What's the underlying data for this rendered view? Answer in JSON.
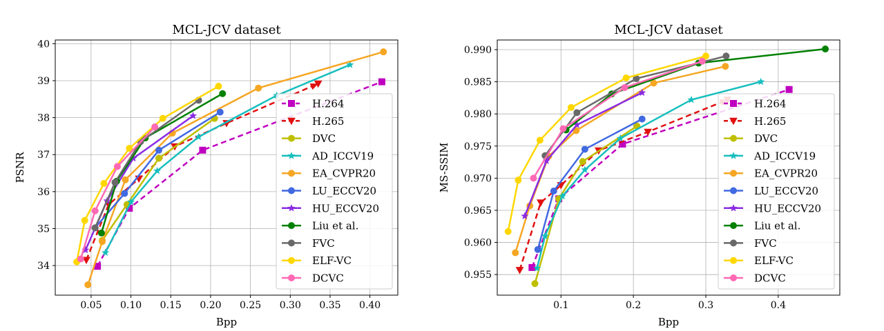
{
  "chart_data": [
    {
      "type": "line",
      "title": "MCL-JCV dataset",
      "xlabel": "Bpp",
      "ylabel": "PSNR",
      "xlim": [
        0.005,
        0.435
      ],
      "ylim": [
        33.2,
        40.1
      ],
      "xticks": [
        0.05,
        0.1,
        0.15,
        0.2,
        0.25,
        0.3,
        0.35,
        0.4
      ],
      "xtick_labels": [
        "0.05",
        "0.10",
        "0.15",
        "0.20",
        "0.25",
        "0.30",
        "0.35",
        "0.40"
      ],
      "yticks": [
        34,
        35,
        36,
        37,
        38,
        39,
        40
      ],
      "ytick_labels": [
        "34",
        "35",
        "36",
        "37",
        "38",
        "39",
        "40"
      ],
      "grid": true,
      "legend_position": "right",
      "series": [
        {
          "name": "H.264",
          "color": "#c000c0",
          "marker": "square",
          "dash": "dashed",
          "arrow": false,
          "points": [
            [
              0.058,
              33.98
            ],
            [
              0.098,
              35.55
            ],
            [
              0.19,
              37.12
            ],
            [
              0.415,
              38.97
            ]
          ]
        },
        {
          "name": "H.265",
          "color": "#e01010",
          "marker": "triangle-down",
          "dash": "dashed",
          "arrow": true,
          "points": [
            [
              0.044,
              34.15
            ],
            [
              0.072,
              35.65
            ],
            [
              0.11,
              36.35
            ],
            [
              0.155,
              37.22
            ],
            [
              0.22,
              37.85
            ],
            [
              0.335,
              38.92
            ]
          ]
        },
        {
          "name": "DVC",
          "color": "#bfbf00",
          "marker": "circle",
          "dash": "solid",
          "arrow": false,
          "points": [
            [
              0.064,
              34.68
            ],
            [
              0.095,
              35.65
            ],
            [
              0.135,
              36.9
            ],
            [
              0.205,
              37.98
            ]
          ]
        },
        {
          "name": "AD_ICCV19",
          "color": "#17bebe",
          "marker": "star",
          "dash": "solid",
          "arrow": false,
          "points": [
            [
              0.068,
              34.35
            ],
            [
              0.1,
              35.72
            ],
            [
              0.133,
              36.56
            ],
            [
              0.185,
              37.48
            ],
            [
              0.283,
              38.6
            ],
            [
              0.375,
              39.43
            ]
          ]
        },
        {
          "name": "EA_CVPR20",
          "color": "#f5a623",
          "marker": "circle",
          "dash": "solid",
          "arrow": false,
          "points": [
            [
              0.046,
              33.48
            ],
            [
              0.064,
              34.65
            ],
            [
              0.093,
              36.32
            ],
            [
              0.152,
              37.58
            ],
            [
              0.26,
              38.8
            ],
            [
              0.417,
              39.78
            ]
          ]
        },
        {
          "name": "LU_ECCV20",
          "color": "#4169e1",
          "marker": "circle",
          "dash": "solid",
          "arrow": false,
          "points": [
            [
              0.055,
              35.02
            ],
            [
              0.092,
              35.95
            ],
            [
              0.135,
              37.12
            ],
            [
              0.212,
              38.15
            ]
          ]
        },
        {
          "name": "HU_ECCV20",
          "color": "#8a2be2",
          "marker": "star",
          "dash": "solid",
          "arrow": false,
          "points": [
            [
              0.043,
              34.42
            ],
            [
              0.07,
              35.75
            ],
            [
              0.103,
              36.9
            ],
            [
              0.178,
              38.05
            ]
          ]
        },
        {
          "name": "Liu et al.",
          "color": "#008000",
          "marker": "circle",
          "dash": "solid",
          "arrow": false,
          "points": [
            [
              0.063,
              34.88
            ],
            [
              0.082,
              36.28
            ],
            [
              0.118,
              37.45
            ],
            [
              0.215,
              38.65
            ]
          ]
        },
        {
          "name": "FVC",
          "color": "#696969",
          "marker": "circle",
          "dash": "solid",
          "arrow": false,
          "points": [
            [
              0.055,
              35.02
            ],
            [
              0.08,
              36.25
            ],
            [
              0.112,
              37.35
            ],
            [
              0.185,
              38.47
            ]
          ]
        },
        {
          "name": "ELF-VC",
          "color": "#ffd700",
          "marker": "circle",
          "dash": "solid",
          "arrow": false,
          "points": [
            [
              0.032,
              34.1
            ],
            [
              0.042,
              35.22
            ],
            [
              0.066,
              36.22
            ],
            [
              0.098,
              37.17
            ],
            [
              0.14,
              37.98
            ],
            [
              0.21,
              38.85
            ]
          ]
        },
        {
          "name": "DCVC",
          "color": "#ff69b4",
          "marker": "circle",
          "dash": "solid",
          "arrow": false,
          "points": [
            [
              0.037,
              34.18
            ],
            [
              0.055,
              35.48
            ],
            [
              0.083,
              36.68
            ],
            [
              0.13,
              37.75
            ]
          ]
        }
      ]
    },
    {
      "type": "line",
      "title": "MCL-JCV dataset",
      "xlabel": "Bpp",
      "ylabel": "MS-SSIM",
      "xlim": [
        0.012,
        0.485
      ],
      "ylim": [
        0.9518,
        0.9915
      ],
      "xticks": [
        0.1,
        0.2,
        0.3,
        0.4
      ],
      "xtick_labels": [
        "0.1",
        "0.2",
        "0.3",
        "0.4"
      ],
      "yticks": [
        0.955,
        0.96,
        0.965,
        0.97,
        0.975,
        0.98,
        0.985,
        0.99
      ],
      "ytick_labels": [
        "0.955",
        "0.960",
        "0.965",
        "0.970",
        "0.975",
        "0.980",
        "0.985",
        "0.990"
      ],
      "grid": true,
      "legend_position": "right",
      "series": [
        {
          "name": "H.264",
          "color": "#c000c0",
          "marker": "square",
          "dash": "dashed",
          "arrow": false,
          "points": [
            [
              0.06,
              0.9561
            ],
            [
              0.097,
              0.9668
            ],
            [
              0.185,
              0.9753
            ],
            [
              0.415,
              0.9838
            ]
          ]
        },
        {
          "name": "H.265",
          "color": "#e01010",
          "marker": "triangle-down",
          "dash": "dashed",
          "arrow": true,
          "points": [
            [
              0.043,
              0.9557
            ],
            [
              0.072,
              0.9662
            ],
            [
              0.1,
              0.9689
            ],
            [
              0.152,
              0.9743
            ],
            [
              0.22,
              0.9772
            ],
            [
              0.33,
              0.9822
            ]
          ]
        },
        {
          "name": "DVC",
          "color": "#bfbf00",
          "marker": "circle",
          "dash": "solid",
          "arrow": false,
          "points": [
            [
              0.064,
              0.9536
            ],
            [
              0.097,
              0.9668
            ],
            [
              0.13,
              0.9726
            ],
            [
              0.205,
              0.9781
            ]
          ]
        },
        {
          "name": "AD_ICCV19",
          "color": "#17bebe",
          "marker": "star",
          "dash": "solid",
          "arrow": false,
          "points": [
            [
              0.067,
              0.956
            ],
            [
              0.078,
              0.961
            ],
            [
              0.102,
              0.9672
            ],
            [
              0.133,
              0.9713
            ],
            [
              0.182,
              0.9762
            ],
            [
              0.28,
              0.9822
            ],
            [
              0.376,
              0.985
            ]
          ]
        },
        {
          "name": "EA_CVPR20",
          "color": "#f5a623",
          "marker": "circle",
          "dash": "solid",
          "arrow": false,
          "points": [
            [
              0.037,
              0.9584
            ],
            [
              0.057,
              0.9657
            ],
            [
              0.083,
              0.9734
            ],
            [
              0.121,
              0.9774
            ],
            [
              0.228,
              0.9848
            ],
            [
              0.327,
              0.9874
            ]
          ]
        },
        {
          "name": "LU_ECCV20",
          "color": "#4169e1",
          "marker": "circle",
          "dash": "solid",
          "arrow": false,
          "points": [
            [
              0.068,
              0.9589
            ],
            [
              0.09,
              0.968
            ],
            [
              0.133,
              0.9745
            ],
            [
              0.212,
              0.9792
            ]
          ]
        },
        {
          "name": "HU_ECCV20",
          "color": "#8a2be2",
          "marker": "star",
          "dash": "solid",
          "arrow": false,
          "points": [
            [
              0.05,
              0.9641
            ],
            [
              0.08,
              0.9727
            ],
            [
              0.122,
              0.9783
            ],
            [
              0.212,
              0.9833
            ]
          ]
        },
        {
          "name": "Liu et al.",
          "color": "#008000",
          "marker": "circle",
          "dash": "solid",
          "arrow": false,
          "points": [
            [
              0.107,
              0.9775
            ],
            [
              0.17,
              0.9831
            ],
            [
              0.29,
              0.9879
            ],
            [
              0.465,
              0.9901
            ]
          ]
        },
        {
          "name": "FVC",
          "color": "#696969",
          "marker": "circle",
          "dash": "solid",
          "arrow": false,
          "points": [
            [
              0.078,
              0.9735
            ],
            [
              0.122,
              0.9802
            ],
            [
              0.204,
              0.9855
            ],
            [
              0.328,
              0.989
            ]
          ]
        },
        {
          "name": "ELF-VC",
          "color": "#ffd700",
          "marker": "circle",
          "dash": "solid",
          "arrow": false,
          "points": [
            [
              0.027,
              0.9617
            ],
            [
              0.041,
              0.9697
            ],
            [
              0.071,
              0.9759
            ],
            [
              0.114,
              0.981
            ],
            [
              0.19,
              0.9856
            ],
            [
              0.3,
              0.989
            ]
          ]
        },
        {
          "name": "DCVC",
          "color": "#ff69b4",
          "marker": "circle",
          "dash": "solid",
          "arrow": false,
          "points": [
            [
              0.062,
              0.97
            ],
            [
              0.103,
              0.9777
            ],
            [
              0.188,
              0.9841
            ],
            [
              0.295,
              0.9882
            ]
          ]
        }
      ]
    }
  ]
}
